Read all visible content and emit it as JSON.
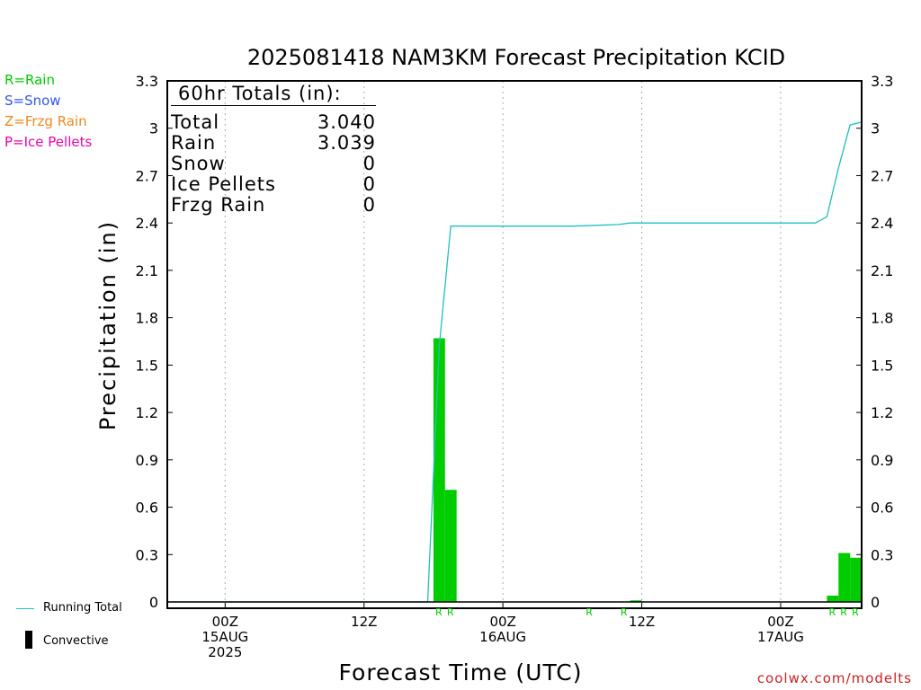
{
  "chart_data": {
    "type": "bar",
    "title": "2025081418 NAM3KM Forecast Precipitation KCID",
    "xlabel": "Forecast Time (UTC)",
    "ylabel": "Precipitation (in)",
    "ylim": [
      0,
      3.3
    ],
    "yticks": [
      0,
      0.3,
      0.6,
      0.9,
      1.2,
      1.5,
      1.8,
      2.1,
      2.4,
      2.7,
      3,
      3.3
    ],
    "ytick_labels": [
      "0",
      "0.3",
      "0.6",
      "0.9",
      "1.2",
      "1.5",
      "1.8",
      "2.1",
      "2.4",
      "2.7",
      "3",
      "3.3"
    ],
    "xlim": [
      -5,
      55
    ],
    "grid": "x-dotted",
    "xticks": [
      {
        "hour": 0,
        "lines": [
          "00Z",
          "15AUG",
          "2025"
        ]
      },
      {
        "hour": 12,
        "lines": [
          "12Z"
        ]
      },
      {
        "hour": 24,
        "lines": [
          "00Z",
          "16AUG"
        ]
      },
      {
        "hour": 36,
        "lines": [
          "12Z"
        ]
      },
      {
        "hour": 48,
        "lines": [
          "00Z",
          "17AUG"
        ]
      }
    ],
    "series": [
      {
        "name": "Convective",
        "kind": "bar",
        "color": "#00cc00",
        "bars": [
          {
            "start": 18,
            "end": 19,
            "value": 1.67
          },
          {
            "start": 19,
            "end": 20,
            "value": 0.71
          },
          {
            "start": 35,
            "end": 36,
            "value": 0.01
          },
          {
            "start": 52,
            "end": 53,
            "value": 0.04
          },
          {
            "start": 53,
            "end": 54,
            "value": 0.31
          },
          {
            "start": 54,
            "end": 55,
            "value": 0.28
          }
        ]
      },
      {
        "name": "Running Total",
        "kind": "line",
        "color": "#20c0c0",
        "x": [
          -5,
          17.5,
          18.5,
          19.5,
          24,
          30,
          32,
          34,
          35,
          36,
          48,
          51,
          52,
          53,
          54,
          55
        ],
        "y": [
          0,
          0,
          1.62,
          2.38,
          2.38,
          2.38,
          2.385,
          2.39,
          2.4,
          2.4,
          2.4,
          2.4,
          2.44,
          2.75,
          3.02,
          3.04
        ]
      }
    ],
    "type_markers": [
      {
        "hour": 19,
        "code": "R"
      },
      {
        "hour": 20,
        "code": "R"
      },
      {
        "hour": 32,
        "code": "R"
      },
      {
        "hour": 35,
        "code": "R"
      },
      {
        "hour": 53,
        "code": "R"
      },
      {
        "hour": 54,
        "code": "R"
      },
      {
        "hour": 55,
        "code": "R"
      }
    ]
  },
  "totals": {
    "header": "60hr Totals (in):",
    "rows": [
      {
        "label": "Total",
        "value": "3.040"
      },
      {
        "label": "Rain",
        "value": "3.039"
      },
      {
        "label": "Snow",
        "value": "0"
      },
      {
        "label": "Ice Pellets",
        "value": "0"
      },
      {
        "label": "Frzg Rain",
        "value": "0"
      }
    ]
  },
  "type_key": [
    {
      "text": "R=Rain",
      "color": "#00cc00"
    },
    {
      "text": "S=Snow",
      "color": "#3355ee"
    },
    {
      "text": "Z=Frzg Rain",
      "color": "#ee8822"
    },
    {
      "text": "P=Ice Pellets",
      "color": "#ee00aa"
    }
  ],
  "legend": {
    "running_total": "Running Total",
    "convective": "Convective"
  },
  "credit": "coolwx.com/modelts",
  "colors": {
    "credit": "#cc2222",
    "grid": "#aaaaaa",
    "baseline": "#000000"
  }
}
